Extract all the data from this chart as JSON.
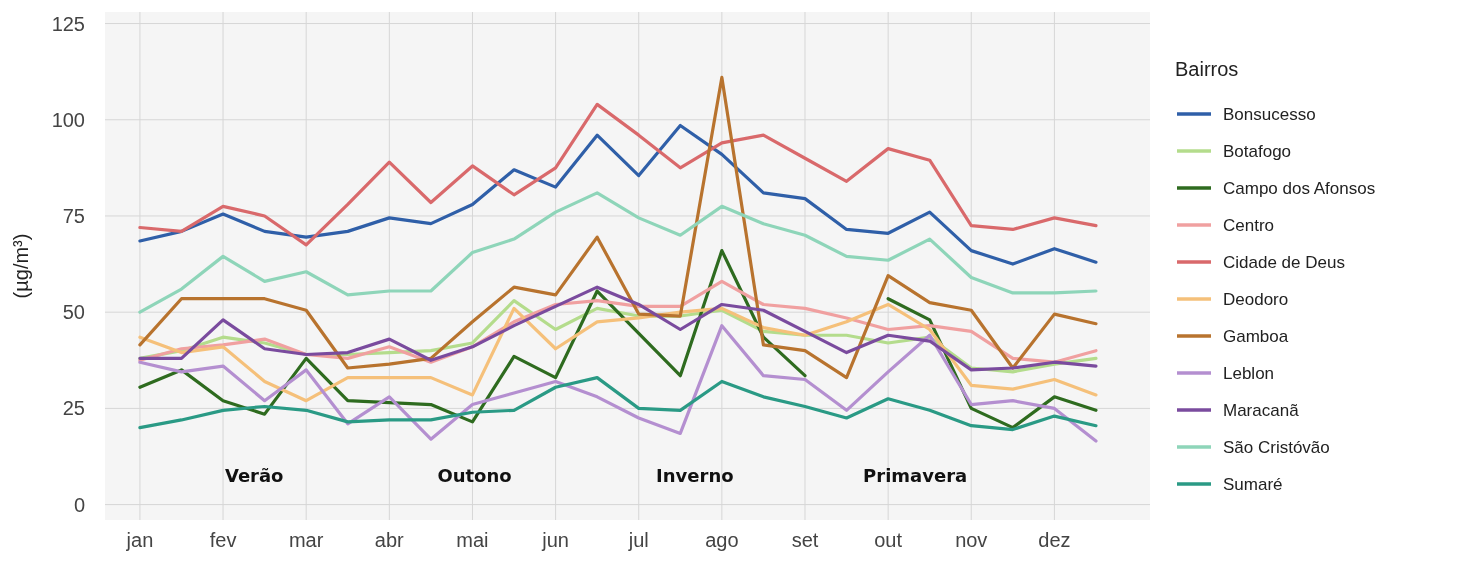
{
  "chart_data": {
    "type": "line",
    "ylabel": "(µg/m³)",
    "legend_title": "Bairros",
    "legend": "right",
    "grid": true,
    "categories": [
      "jan",
      null,
      "fev",
      null,
      "mar",
      null,
      "abr",
      null,
      "mai",
      null,
      "jun",
      null,
      "jul",
      null,
      "ago",
      null,
      "set",
      null,
      "out",
      null,
      "nov",
      null,
      "dez",
      null
    ],
    "ylim": [
      -4,
      128
    ],
    "yticks": [
      0,
      25,
      50,
      75,
      100,
      125
    ],
    "annotations": [
      "Verão",
      "Outono",
      "Inverno",
      "Primavera"
    ],
    "series": [
      {
        "name": "Bonsucesso",
        "color": "#2f5fa8",
        "values": [
          68.5,
          71,
          75.5,
          71,
          69.5,
          71,
          74.5,
          73,
          78,
          87,
          82.5,
          96,
          85.5,
          98.5,
          91,
          81,
          79.5,
          71.5,
          70.5,
          76,
          66,
          62.5,
          66.5,
          63
        ]
      },
      {
        "name": "Botafogo",
        "color": "#b4dc8c",
        "values": [
          38,
          40,
          43.5,
          42,
          39,
          39,
          39.5,
          40,
          42,
          53,
          45.5,
          51,
          49,
          49,
          50.5,
          45,
          44,
          44,
          42,
          43.5,
          35.5,
          34.5,
          36.5,
          38
        ]
      },
      {
        "name": "Campo dos Afonsos",
        "color": "#2e6b1f",
        "values": [
          30.5,
          35,
          27,
          23.5,
          38,
          27,
          26.5,
          26,
          21.5,
          38.5,
          33,
          55.5,
          44.5,
          33.5,
          66,
          43.5,
          33.5,
          null,
          53.5,
          48,
          25,
          20,
          28,
          24.5
        ]
      },
      {
        "name": "Centro",
        "color": "#f0a0a0",
        "values": [
          37.5,
          40.5,
          41.5,
          43,
          39,
          38,
          41,
          37,
          41,
          47.5,
          52,
          53,
          51.5,
          51.5,
          58,
          52,
          51,
          48.5,
          45.5,
          46.5,
          45,
          38,
          37,
          40
        ]
      },
      {
        "name": "Cidade de Deus",
        "color": "#d9696b",
        "values": [
          72,
          71,
          77.5,
          75,
          67.5,
          78,
          89,
          78.5,
          88,
          80.5,
          87.5,
          104,
          96,
          87.5,
          94,
          96,
          90,
          84,
          92.5,
          89.5,
          72.5,
          71.5,
          74.5,
          72.5
        ]
      },
      {
        "name": "Deodoro",
        "color": "#f5c07a",
        "values": [
          43.5,
          39.5,
          41,
          32,
          27,
          33,
          33,
          33,
          28.5,
          51,
          40.5,
          47.5,
          48.5,
          50,
          51,
          46,
          44,
          47.5,
          52,
          45.5,
          31,
          30,
          32.5,
          28.5
        ]
      },
      {
        "name": "Gamboa",
        "color": "#b8732e",
        "values": [
          41.5,
          53.5,
          53.5,
          53.5,
          50.5,
          35.5,
          36.5,
          38,
          47.5,
          56.5,
          54.5,
          69.5,
          49.5,
          49,
          111,
          41.5,
          40,
          33,
          59.5,
          52.5,
          50.5,
          35.5,
          49.5,
          47
        ]
      },
      {
        "name": "Leblon",
        "color": "#b48fd0",
        "values": [
          37,
          34.5,
          36,
          27,
          35,
          21,
          28,
          17,
          26,
          29,
          32,
          28,
          22.5,
          18.5,
          46.5,
          33.5,
          32.5,
          24.5,
          34.5,
          44,
          26,
          27,
          25,
          16.5
        ]
      },
      {
        "name": "Maracanã",
        "color": "#7a4b9e",
        "values": [
          38,
          38,
          48,
          40.5,
          39,
          39.5,
          43,
          37.5,
          41,
          46.5,
          51.5,
          56.5,
          52,
          45.5,
          52,
          50.5,
          45,
          39.5,
          44,
          42.5,
          35,
          35.5,
          37,
          36
        ]
      },
      {
        "name": "São Cristóvão",
        "color": "#8ed5b9",
        "values": [
          50,
          56,
          64.5,
          58,
          60.5,
          54.5,
          55.5,
          55.5,
          65.5,
          69,
          76,
          81,
          74.5,
          70,
          77.5,
          73,
          70,
          64.5,
          63.5,
          69,
          59,
          55,
          55,
          55.5
        ]
      },
      {
        "name": "Sumaré",
        "color": "#2a9a85",
        "values": [
          20,
          22,
          24.5,
          25.5,
          24.5,
          21.5,
          22,
          22,
          24,
          24.5,
          30.5,
          33,
          25,
          24.5,
          32,
          28,
          25.5,
          22.5,
          27.5,
          24.5,
          20.5,
          19.5,
          23,
          20.5
        ]
      }
    ]
  }
}
